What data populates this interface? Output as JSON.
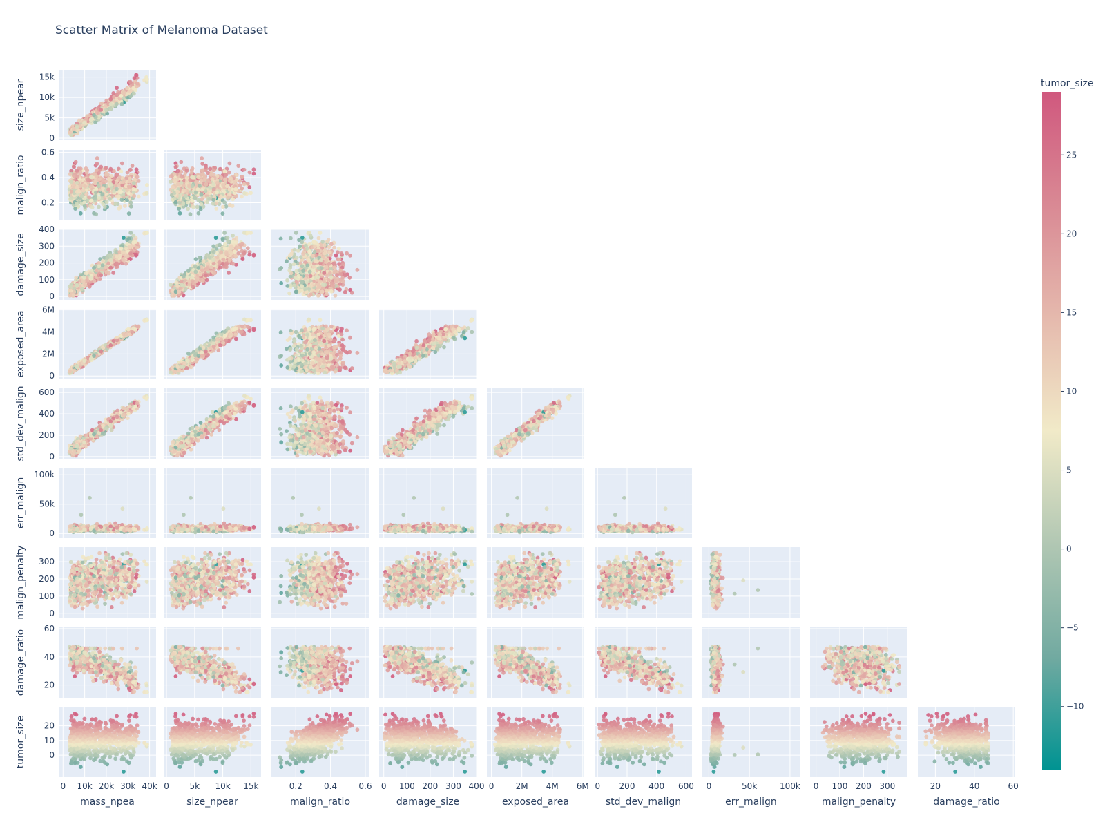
{
  "chart_data": {
    "type": "scatter",
    "title": "Scatter Matrix of Melanoma Dataset",
    "layout": "lower-triangle scatter matrix",
    "grid": true,
    "variables": [
      {
        "name": "mass_npea",
        "range": [
          -2000,
          43000
        ],
        "ticks": [
          0,
          10000,
          20000,
          30000,
          40000
        ],
        "tick_labels": [
          "0",
          "10k",
          "20k",
          "30k",
          "40k"
        ]
      },
      {
        "name": "size_npear",
        "range": [
          -500,
          16800
        ],
        "ticks": [
          0,
          5000,
          10000,
          15000
        ],
        "tick_labels": [
          "0",
          "5k",
          "10k",
          "15k"
        ]
      },
      {
        "name": "malign_ratio",
        "range": [
          0.06,
          0.62
        ],
        "ticks": [
          0.2,
          0.4,
          0.6
        ],
        "tick_labels": [
          "0.2",
          "0.4",
          "0.6"
        ]
      },
      {
        "name": "damage_size",
        "range": [
          -20,
          400
        ],
        "ticks": [
          0,
          100,
          200,
          300,
          400
        ],
        "tick_labels": [
          "0",
          "100",
          "200",
          "300",
          "400"
        ]
      },
      {
        "name": "exposed_area",
        "range": [
          -300000,
          6100000
        ],
        "ticks": [
          0,
          2000000,
          4000000,
          6000000
        ],
        "tick_labels": [
          "0",
          "2M",
          "4M",
          "6M"
        ]
      },
      {
        "name": "std_dev_malign",
        "range": [
          -20,
          640
        ],
        "ticks": [
          0,
          200,
          400,
          600
        ],
        "tick_labels": [
          "0",
          "200",
          "400",
          "600"
        ]
      },
      {
        "name": "err_malign",
        "range": [
          -8000,
          112000
        ],
        "ticks": [
          0,
          50000,
          100000
        ],
        "tick_labels": [
          "0",
          "50k",
          "100k"
        ]
      },
      {
        "name": "malign_penalty",
        "range": [
          -25,
          385
        ],
        "ticks": [
          0,
          100,
          200,
          300
        ],
        "tick_labels": [
          "0",
          "100",
          "200",
          "300"
        ]
      },
      {
        "name": "damage_ratio",
        "range": [
          11,
          61
        ],
        "ticks": [
          20,
          40,
          60
        ],
        "tick_labels": [
          "20",
          "40",
          "60"
        ]
      },
      {
        "name": "tumor_size",
        "range": [
          -15,
          33
        ],
        "ticks": [
          0,
          10,
          20
        ],
        "tick_labels": [
          "0",
          "10",
          "20"
        ]
      }
    ],
    "y_tick_overrides": {
      "size_npear": {
        "ticks": [
          0,
          5000,
          10000,
          15000
        ],
        "tick_labels": [
          "0",
          "5k",
          "10k",
          "15k"
        ]
      },
      "malign_ratio": {
        "ticks": [
          0.2,
          0.4,
          0.6
        ],
        "tick_labels": [
          "0.2",
          "0.4",
          "0.6"
        ]
      },
      "damage_size": {
        "ticks": [
          0,
          100,
          200,
          300,
          400
        ],
        "tick_labels": [
          "0",
          "100",
          "200",
          "300",
          "400"
        ]
      },
      "exposed_area": {
        "ticks": [
          0,
          2000000,
          4000000,
          6000000
        ],
        "tick_labels": [
          "0",
          "2M",
          "4M",
          "6M"
        ]
      },
      "std_dev_malign": {
        "ticks": [
          0,
          200,
          400,
          600
        ],
        "tick_labels": [
          "0",
          "200",
          "400",
          "600"
        ]
      },
      "err_malign": {
        "ticks": [
          0,
          50000,
          100000
        ],
        "tick_labels": [
          "0",
          "50k",
          "100k"
        ]
      },
      "malign_penalty": {
        "ticks": [
          0,
          100,
          200,
          300
        ],
        "tick_labels": [
          "0",
          "100",
          "200",
          "300"
        ]
      },
      "damage_ratio": {
        "ticks": [
          20,
          40,
          60
        ],
        "tick_labels": [
          "20",
          "40",
          "60"
        ]
      },
      "tumor_size": {
        "ticks": [
          0,
          10,
          20
        ],
        "tick_labels": [
          "0",
          "10",
          "20"
        ]
      }
    },
    "color_variable": "tumor_size",
    "colorbar": {
      "title": "tumor_size",
      "range": [
        -14,
        29
      ],
      "ticks": [
        -10,
        -5,
        0,
        5,
        10,
        15,
        20,
        25
      ],
      "tick_labels": [
        "−10",
        "−5",
        "0",
        "5",
        "10",
        "15",
        "20",
        "25"
      ],
      "colorscale": [
        "#009392",
        "#72aaa1",
        "#b1c7b3",
        "#f1eac8",
        "#e5b9ad",
        "#d98994",
        "#d0587e"
      ]
    },
    "colors": {
      "plot_background": "#e5ecf6",
      "gridline": "#ffffff",
      "text": "#2a3f5f"
    }
  }
}
